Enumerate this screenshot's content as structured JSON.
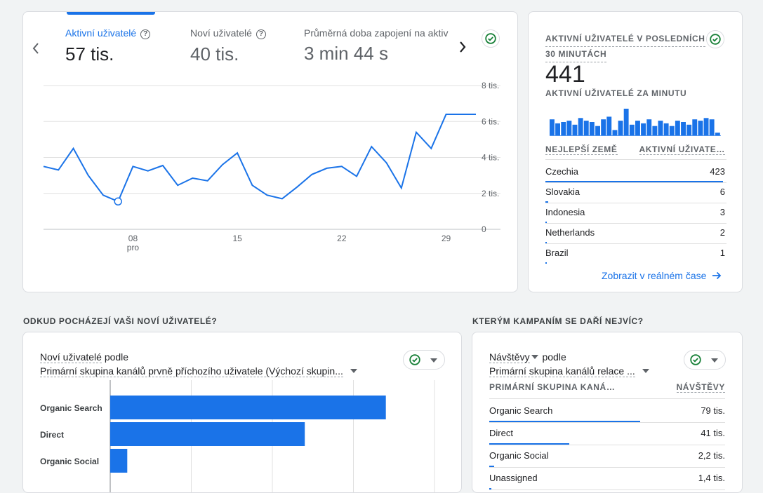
{
  "overview": {
    "metrics": [
      {
        "label": "Aktivní uživatelé",
        "value": "57 tis."
      },
      {
        "label": "Noví uživatelé",
        "value": "40 tis."
      },
      {
        "label": "Průměrná doba zapojení na aktiv",
        "value": "3 min 44 s"
      }
    ],
    "chart_data": {
      "type": "line",
      "title": "",
      "x_tick_labels": [
        "08",
        "15",
        "22",
        "29"
      ],
      "x_sub_label": "pro",
      "y_tick_labels": [
        "8 tis.",
        "6 tis.",
        "4 tis.",
        "2 tis.",
        "0"
      ],
      "ylim": [
        0,
        8000
      ],
      "grid": true,
      "x": [
        1,
        2,
        3,
        4,
        5,
        6,
        7,
        8,
        9,
        10,
        11,
        12,
        13,
        14,
        15,
        16,
        17,
        18,
        19,
        20,
        21,
        22,
        23,
        24,
        25,
        26,
        27,
        28,
        29,
        30
      ],
      "series": [
        {
          "values": [
            3500,
            3300,
            4500,
            3000,
            1900,
            1550,
            3500,
            3250,
            3550,
            2450,
            2850,
            2700,
            3600,
            4250,
            2450,
            1900,
            1700,
            2350,
            3050,
            3400,
            3500,
            2950,
            4600,
            3700,
            2300,
            5400,
            4500,
            6400,
            6400,
            6400
          ]
        }
      ]
    }
  },
  "realtime": {
    "title_line1": "AKTIVNÍ UŽIVATELÉ V POSLEDNÍCH",
    "title_line2": "30 MINUTÁCH",
    "value": "441",
    "subtitle": "AKTIVNÍ UŽIVATELÉ ZA MINUTU",
    "minute_bars": [
      0.6,
      0.45,
      0.5,
      0.55,
      0.4,
      0.65,
      0.55,
      0.5,
      0.35,
      0.6,
      0.7,
      0.2,
      0.55,
      1.0,
      0.4,
      0.55,
      0.45,
      0.6,
      0.35,
      0.55,
      0.45,
      0.35,
      0.55,
      0.5,
      0.4,
      0.6,
      0.55,
      0.65,
      0.6,
      0.1
    ],
    "col_country": "NEJLEPŠÍ ZEMĚ",
    "col_users": "AKTIVNÍ UŽIVATE…",
    "rows": [
      {
        "country": "Czechia",
        "value": "423",
        "share": 0.98
      },
      {
        "country": "Slovakia",
        "value": "6",
        "share": 0.014
      },
      {
        "country": "Indonesia",
        "value": "3",
        "share": 0.007
      },
      {
        "country": "Netherlands",
        "value": "2",
        "share": 0.005
      },
      {
        "country": "Brazil",
        "value": "1",
        "share": 0.003
      }
    ],
    "link": "Zobrazit v reálném čase"
  },
  "section_new_users": {
    "heading": "ODKUD POCHÁZEJÍ VAŠI NOVÍ UŽIVATELÉ?",
    "title_metric": "Noví uživatelé",
    "title_suffix": "podle",
    "dimension": "Primární skupina kanálů prvně příchozího uživatele (Výchozí skupin...",
    "chart_data": {
      "type": "bar",
      "orientation": "horizontal",
      "title": "",
      "categories": [
        "Organic Search",
        "Direct",
        "Organic Social"
      ],
      "values": [
        34000,
        24000,
        2100
      ],
      "xlim": [
        0,
        40000
      ]
    }
  },
  "section_campaigns": {
    "heading": "KTERÝM KAMPANÍM SE DAŘÍ NEJVÍC?",
    "title_metric": "Návštěvy",
    "title_suffix": "podle",
    "dimension": "Primární skupina kanálů relace ...",
    "col_channel": "PRIMÁRNÍ SKUPINA KANÁ…",
    "col_visits": "NÁVŠTĚVY",
    "rows": [
      {
        "channel": "Organic Search",
        "value": "79 tis.",
        "share": 0.64
      },
      {
        "channel": "Direct",
        "value": "41 tis.",
        "share": 0.34
      },
      {
        "channel": "Organic Social",
        "value": "2,2 tis.",
        "share": 0.02
      },
      {
        "channel": "Unassigned",
        "value": "1,4 tis.",
        "share": 0.01
      }
    ]
  },
  "colors": {
    "accent": "#1a73e8",
    "check": "#188038",
    "text": "#202124",
    "muted": "#5f6368"
  }
}
